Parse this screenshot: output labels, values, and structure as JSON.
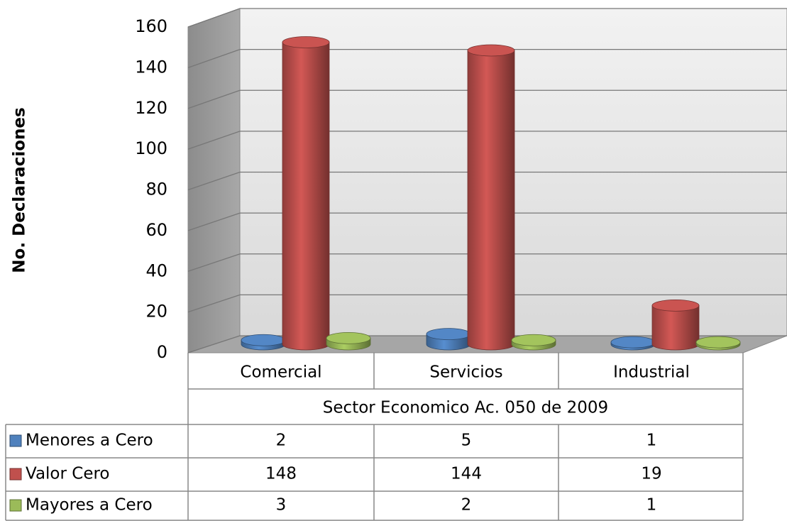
{
  "chart_data": {
    "type": "bar3d",
    "y_label": "No. Declaraciones",
    "x_label": "Sector Economico Ac. 050 de 2009",
    "categories": [
      "Comercial",
      "Servicios",
      "Industrial"
    ],
    "series": [
      {
        "name": "Menores a Cero",
        "color": "#4f81bd",
        "values": [
          2,
          5,
          1
        ]
      },
      {
        "name": "Valor Cero",
        "color": "#c0504d",
        "values": [
          148,
          144,
          19
        ]
      },
      {
        "name": "Mayores a Cero",
        "color": "#9bbb59",
        "values": [
          3,
          2,
          1
        ]
      }
    ],
    "ylim": [
      0,
      160
    ],
    "yticks": [
      0,
      20,
      40,
      60,
      80,
      100,
      120,
      140,
      160
    ],
    "grid": true
  }
}
